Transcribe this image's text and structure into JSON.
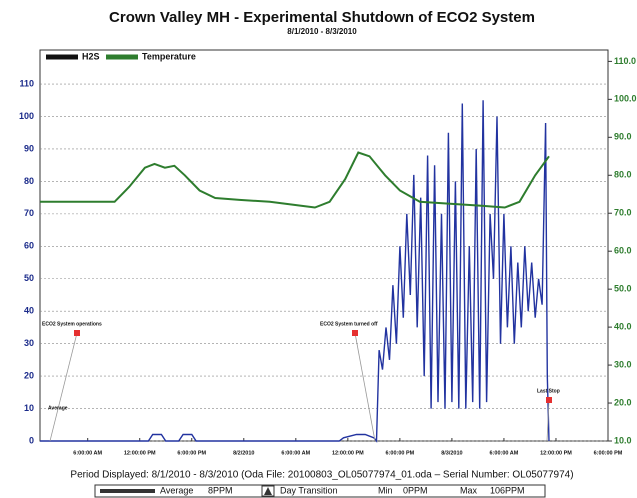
{
  "chart_data": {
    "type": "line",
    "title": "Crown Valley MH - Experimental Shutdown of ECO2 System",
    "subtitle": "8/1/2010 - 8/3/2010",
    "xlim": [
      0.5,
      66
    ],
    "xticks": [
      {
        "value": 6,
        "label": "6:00:00 AM"
      },
      {
        "value": 12,
        "label": "12:00:00 PM"
      },
      {
        "value": 18,
        "label": "6:00:00 PM"
      },
      {
        "value": 24,
        "label": "8/2/2010"
      },
      {
        "value": 30,
        "label": "6:00:00 AM"
      },
      {
        "value": 36,
        "label": "12:00:00 PM"
      },
      {
        "value": 42,
        "label": "6:00:00 PM"
      },
      {
        "value": 48,
        "label": "8/3/2010"
      },
      {
        "value": 54,
        "label": "6:00:00 AM"
      },
      {
        "value": 60,
        "label": "12:00:00 PM"
      },
      {
        "value": 66,
        "label": "6:00:00 PM"
      }
    ],
    "ylim": [
      0,
      120.5
    ],
    "yticks": [
      0,
      10,
      20,
      30,
      40,
      50,
      60,
      70,
      80,
      90,
      100,
      110
    ],
    "y2lim": [
      10,
      113
    ],
    "y2ticks": [
      {
        "value": 10,
        "label": "10.0"
      },
      {
        "value": 20,
        "label": "20.0"
      },
      {
        "value": 30,
        "label": "30.0"
      },
      {
        "value": 40,
        "label": "40.0"
      },
      {
        "value": 50,
        "label": "50.0"
      },
      {
        "value": 60,
        "label": "60.0"
      },
      {
        "value": 70,
        "label": "70.0"
      },
      {
        "value": 80,
        "label": "80.0"
      },
      {
        "value": 90,
        "label": "90.0"
      },
      {
        "value": 100,
        "label": "100.0"
      },
      {
        "value": 110,
        "label": "110.0"
      }
    ],
    "grid": true,
    "series": [
      {
        "name": "H2S",
        "color": "#2233a0",
        "x": [
          0.5,
          13,
          13.5,
          14.5,
          15,
          16.5,
          17,
          18,
          18.5,
          35,
          35.5,
          37,
          38,
          39,
          39.3,
          39.6,
          40,
          40.4,
          40.8,
          41.2,
          41.6,
          42,
          42.4,
          42.8,
          43.2,
          43.6,
          44,
          44.4,
          44.8,
          45.2,
          45.6,
          46,
          46.4,
          46.8,
          47.2,
          47.6,
          48,
          48.4,
          48.8,
          49.2,
          49.6,
          50,
          50.4,
          50.8,
          51.2,
          51.6,
          52,
          52.4,
          52.8,
          53.2,
          53.6,
          54,
          54.4,
          54.8,
          55.2,
          55.6,
          56,
          56.4,
          56.8,
          57.2,
          57.6,
          58,
          58.4,
          58.8,
          59,
          59.2
        ],
        "values": [
          0,
          0,
          2,
          2,
          0,
          0,
          2,
          2,
          0,
          0,
          1,
          2,
          2,
          1,
          0,
          28,
          22,
          35,
          25,
          48,
          30,
          60,
          38,
          70,
          45,
          82,
          35,
          75,
          20,
          88,
          10,
          85,
          12,
          70,
          10,
          95,
          12,
          80,
          10,
          104,
          10,
          60,
          12,
          90,
          10,
          105,
          12,
          70,
          50,
          100,
          30,
          70,
          35,
          60,
          30,
          55,
          35,
          60,
          40,
          55,
          38,
          50,
          42,
          98,
          20,
          0
        ]
      },
      {
        "name": "Temperature",
        "color": "#2e7d2e",
        "axis": "y2",
        "x": [
          0.5,
          5.1,
          9.1,
          10.8,
          12.6,
          13.7,
          14.9,
          16.0,
          17.2,
          18.9,
          20.7,
          23.5,
          27.0,
          30.5,
          32.2,
          33.9,
          35.7,
          37.2,
          38.5,
          40.3,
          42.0,
          44.3,
          47.8,
          51.2,
          54.1,
          55.8,
          57.6,
          59.2
        ],
        "values": [
          73,
          73,
          73,
          77,
          82,
          83,
          82,
          82.5,
          80,
          76,
          74,
          73.5,
          73,
          72,
          71.5,
          73,
          79,
          86,
          85,
          80,
          76,
          73,
          72.5,
          72,
          71.5,
          73,
          80,
          85
        ]
      }
    ],
    "annotations": [
      "ECO2 System operations",
      "Average",
      "ECO2 System turned off",
      "Last Stop"
    ],
    "footer": {
      "period": "Period Displayed: 8/1/2010 - 8/3/2010  (Oda File: 20100803_OL05077974_01.oda  –  Serial Number: OL05077974)",
      "legend": [
        "Average",
        "8PPM",
        "Day Transition",
        "Min",
        "0PPM",
        "Max",
        "106PPM"
      ]
    }
  }
}
